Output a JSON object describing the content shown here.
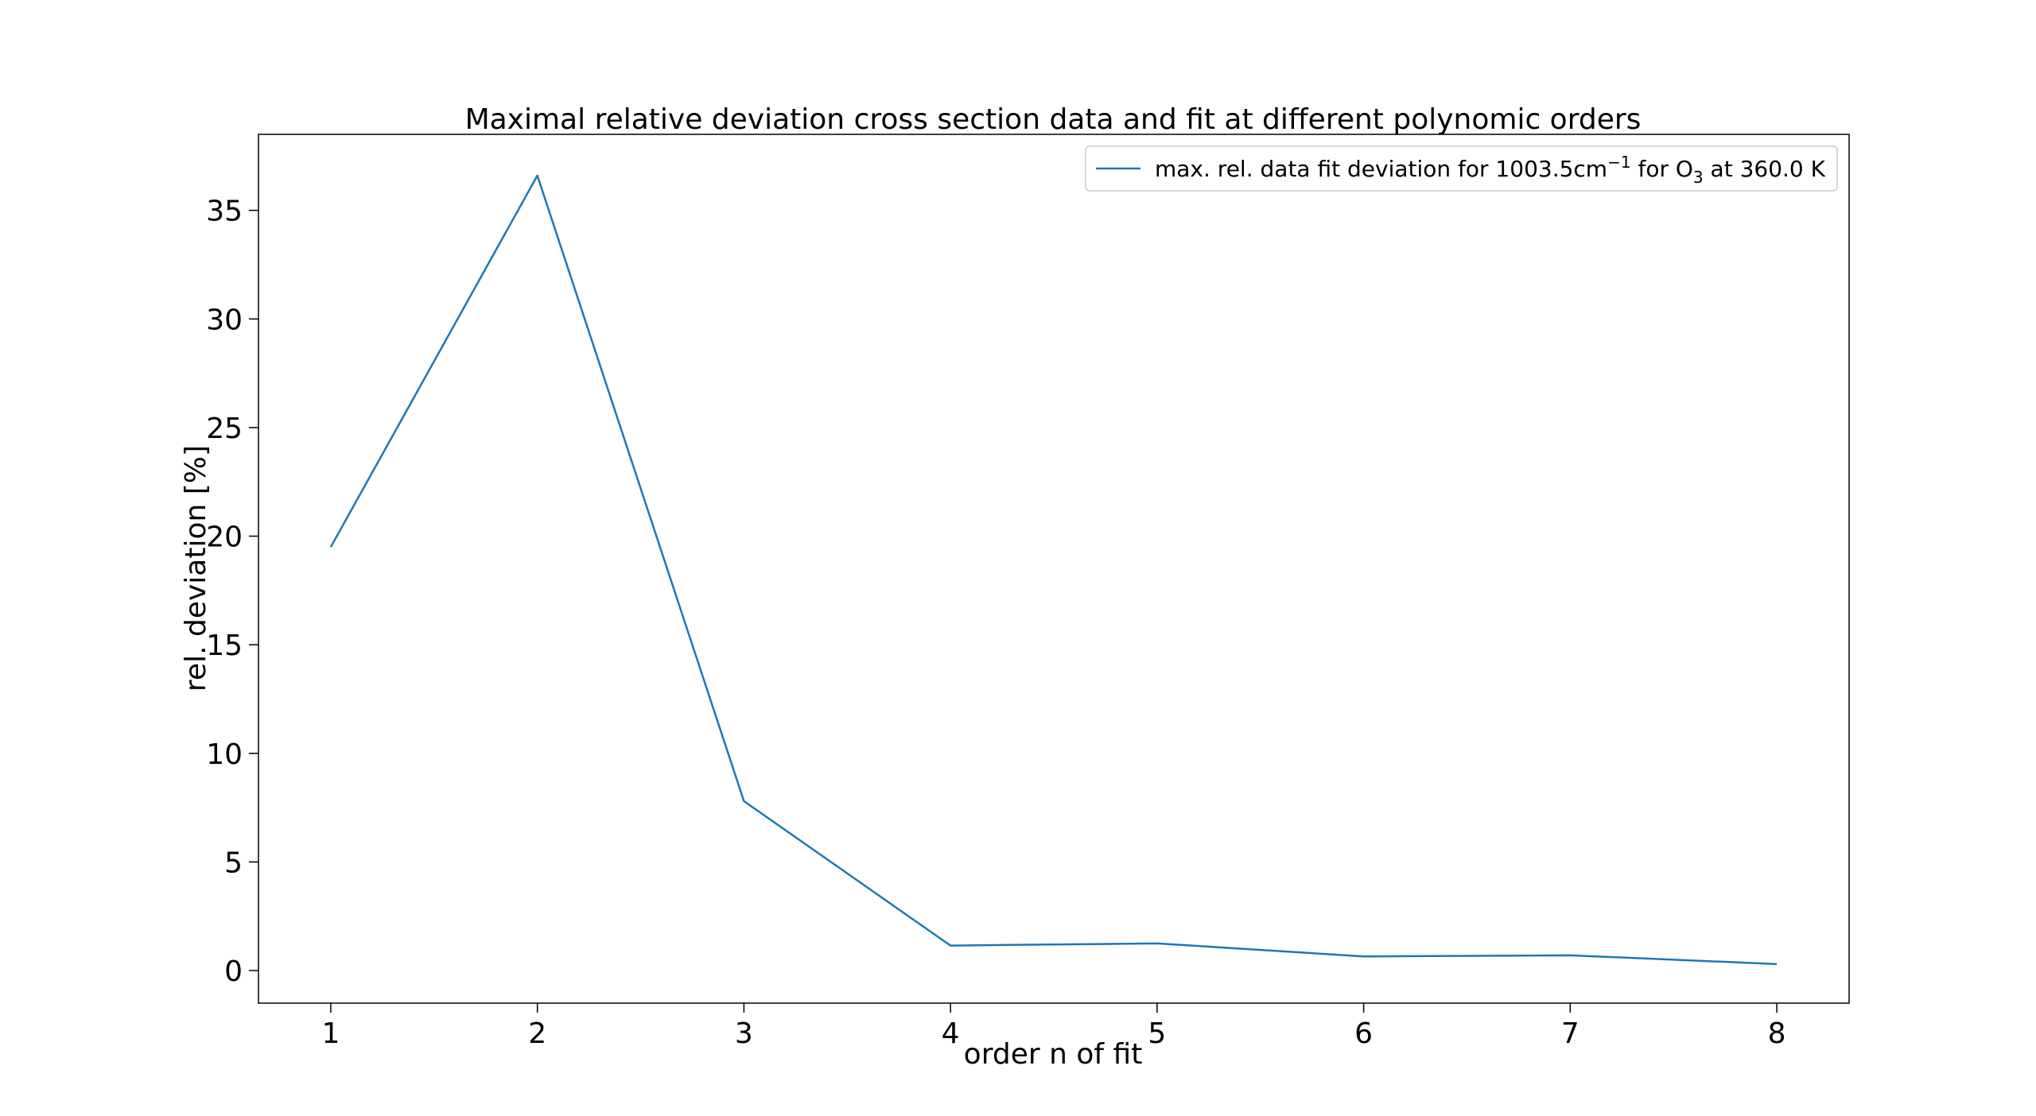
{
  "chart_data": {
    "type": "line",
    "title": "Maximal relative deviation cross section data and fit at different polynomic orders",
    "xlabel": "order n of fit",
    "ylabel": "rel. deviation [%]",
    "xlim": [
      0.65,
      8.35
    ],
    "ylim": [
      -1.5,
      38.5
    ],
    "x_ticks": [
      1,
      2,
      3,
      4,
      5,
      6,
      7,
      8
    ],
    "y_ticks": [
      0,
      5,
      10,
      15,
      20,
      25,
      30,
      35
    ],
    "grid": false,
    "legend_position": "upper right",
    "legend": {
      "prefix": "max. rel. data fit deviation for 1003.5cm",
      "sup": "−1",
      "mid": " for O",
      "sub": "3",
      "suffix": " at 360.0 K"
    },
    "series": [
      {
        "name": "max. rel. data fit deviation for 1003.5cm−1 for O3 at 360.0 K",
        "color": "#1f77b4",
        "x": [
          1,
          2,
          3,
          4,
          5,
          6,
          7,
          8
        ],
        "y": [
          19.5,
          36.6,
          7.8,
          1.15,
          1.25,
          0.65,
          0.7,
          0.3
        ]
      }
    ]
  }
}
